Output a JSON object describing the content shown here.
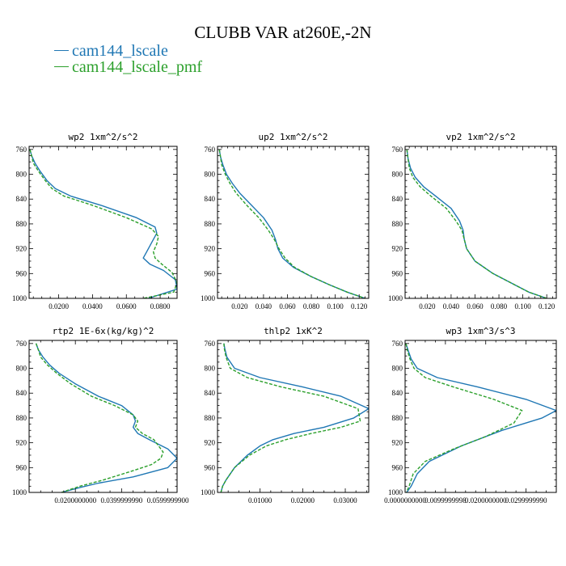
{
  "figure": {
    "title": "CLUBB VAR at260E,-2N",
    "legend": [
      {
        "label": "cam144_lscale",
        "color": "#1f77b4"
      },
      {
        "label": "cam144_lscale_pmf",
        "color": "#2ca02c"
      }
    ]
  },
  "chart_data": [
    {
      "type": "line",
      "title": "wp2  1xm^2/s^2",
      "xlim": [
        0.0025,
        0.09
      ],
      "ylim": [
        1000,
        755
      ],
      "y_reversed": true,
      "xticks": [
        "0.0200",
        "0.0400",
        "0.0600",
        "0.0800"
      ],
      "xtick_values": [
        0.02,
        0.04,
        0.06,
        0.08
      ],
      "yticks": [
        "760",
        "800",
        "840",
        "880",
        "920",
        "960",
        "1000"
      ],
      "series": [
        {
          "name": "cam144_lscale",
          "color": "#1f77b4",
          "dashed": false,
          "x": [
            0.003,
            0.004,
            0.006,
            0.009,
            0.013,
            0.018,
            0.027,
            0.045,
            0.066,
            0.077,
            0.078,
            0.075,
            0.072,
            0.07,
            0.074,
            0.082,
            0.089,
            0.09,
            0.073
          ],
          "y": [
            760,
            770,
            782,
            795,
            810,
            823,
            835,
            850,
            870,
            885,
            895,
            910,
            925,
            935,
            945,
            955,
            970,
            985,
            1000
          ]
        },
        {
          "name": "cam144_lscale_pmf",
          "color": "#2ca02c",
          "dashed": true,
          "x": [
            0.003,
            0.004,
            0.005,
            0.008,
            0.012,
            0.016,
            0.023,
            0.04,
            0.06,
            0.075,
            0.079,
            0.078,
            0.076,
            0.077,
            0.081,
            0.087,
            0.09,
            0.088,
            0.07
          ],
          "y": [
            760,
            770,
            782,
            795,
            810,
            823,
            835,
            850,
            870,
            888,
            900,
            912,
            925,
            935,
            945,
            958,
            975,
            990,
            1000
          ]
        }
      ]
    },
    {
      "type": "line",
      "title": "up2  1xm^2/s^2",
      "xlim": [
        0.0015,
        0.128
      ],
      "ylim": [
        1000,
        755
      ],
      "y_reversed": true,
      "xticks": [
        "0.020",
        "0.040",
        "0.060",
        "0.080",
        "0.100",
        "0.120"
      ],
      "xtick_values": [
        0.02,
        0.04,
        0.06,
        0.08,
        0.1,
        0.12
      ],
      "yticks": [
        "760",
        "800",
        "840",
        "880",
        "920",
        "960",
        "1000"
      ],
      "series": [
        {
          "name": "cam144_lscale",
          "color": "#1f77b4",
          "dashed": false,
          "x": [
            0.003,
            0.004,
            0.006,
            0.009,
            0.014,
            0.02,
            0.03,
            0.04,
            0.047,
            0.05,
            0.052,
            0.056,
            0.065,
            0.08,
            0.095,
            0.11,
            0.125
          ],
          "y": [
            760,
            772,
            785,
            800,
            815,
            830,
            850,
            870,
            890,
            905,
            920,
            935,
            950,
            965,
            978,
            990,
            1000
          ]
        },
        {
          "name": "cam144_lscale_pmf",
          "color": "#2ca02c",
          "dashed": true,
          "x": [
            0.003,
            0.004,
            0.005,
            0.008,
            0.012,
            0.017,
            0.026,
            0.036,
            0.044,
            0.049,
            0.053,
            0.058,
            0.066,
            0.08,
            0.095,
            0.11,
            0.125
          ],
          "y": [
            760,
            772,
            785,
            800,
            815,
            830,
            850,
            870,
            890,
            905,
            920,
            935,
            950,
            965,
            978,
            990,
            1000
          ]
        }
      ]
    },
    {
      "type": "line",
      "title": "vp2  1xm^2/s^2",
      "xlim": [
        0.0015,
        0.128
      ],
      "ylim": [
        1000,
        755
      ],
      "y_reversed": true,
      "xticks": [
        "0.020",
        "0.040",
        "0.060",
        "0.080",
        "0.100",
        "0.120"
      ],
      "xtick_values": [
        0.02,
        0.04,
        0.06,
        0.08,
        0.1,
        0.12
      ],
      "yticks": [
        "760",
        "800",
        "840",
        "880",
        "920",
        "960",
        "1000"
      ],
      "series": [
        {
          "name": "cam144_lscale",
          "color": "#1f77b4",
          "dashed": false,
          "x": [
            0.003,
            0.004,
            0.006,
            0.01,
            0.017,
            0.027,
            0.04,
            0.047,
            0.05,
            0.051,
            0.053,
            0.06,
            0.075,
            0.09,
            0.105,
            0.12
          ],
          "y": [
            760,
            775,
            790,
            805,
            820,
            835,
            855,
            875,
            890,
            905,
            920,
            940,
            960,
            975,
            990,
            1000
          ]
        },
        {
          "name": "cam144_lscale_pmf",
          "color": "#2ca02c",
          "dashed": true,
          "x": [
            0.003,
            0.004,
            0.005,
            0.008,
            0.014,
            0.023,
            0.036,
            0.044,
            0.049,
            0.051,
            0.053,
            0.06,
            0.075,
            0.09,
            0.105,
            0.12
          ],
          "y": [
            760,
            775,
            790,
            805,
            820,
            835,
            855,
            875,
            890,
            905,
            920,
            940,
            960,
            975,
            990,
            1000
          ]
        }
      ]
    },
    {
      "type": "line",
      "title": "rtp2  1E-6x(kg/kg)^2",
      "xlim": [
        0.0,
        0.064
      ],
      "ylim": [
        1000,
        755
      ],
      "y_reversed": true,
      "xticks": [
        "0.0200000000",
        "0.0399999990",
        "0.0599999900"
      ],
      "xtick_values": [
        0.02,
        0.04,
        0.06
      ],
      "yticks": [
        "760",
        "800",
        "840",
        "880",
        "920",
        "960",
        "1000"
      ],
      "series": [
        {
          "name": "cam144_lscale",
          "color": "#1f77b4",
          "dashed": false,
          "x": [
            0.003,
            0.004,
            0.006,
            0.009,
            0.013,
            0.02,
            0.03,
            0.04,
            0.045,
            0.046,
            0.045,
            0.047,
            0.052,
            0.06,
            0.064,
            0.06,
            0.045,
            0.03,
            0.022,
            0.014
          ],
          "y": [
            760,
            770,
            782,
            795,
            808,
            825,
            845,
            860,
            875,
            885,
            895,
            905,
            915,
            930,
            945,
            960,
            975,
            985,
            992,
            1000
          ]
        },
        {
          "name": "cam144_lscale_pmf",
          "color": "#2ca02c",
          "dashed": true,
          "x": [
            0.003,
            0.004,
            0.005,
            0.008,
            0.012,
            0.018,
            0.027,
            0.037,
            0.045,
            0.047,
            0.046,
            0.049,
            0.054,
            0.058,
            0.057,
            0.053,
            0.045,
            0.032,
            0.022,
            0.014
          ],
          "y": [
            760,
            770,
            782,
            795,
            808,
            825,
            845,
            860,
            875,
            885,
            895,
            905,
            915,
            935,
            945,
            955,
            965,
            980,
            990,
            1000
          ]
        }
      ]
    },
    {
      "type": "line",
      "title": "thlp2  1xK^2",
      "xlim": [
        0.0,
        0.0355
      ],
      "ylim": [
        1000,
        755
      ],
      "y_reversed": true,
      "xticks": [
        "0.01000",
        "0.02000",
        "0.03000"
      ],
      "xtick_values": [
        0.01,
        0.02,
        0.03
      ],
      "yticks": [
        "760",
        "800",
        "840",
        "880",
        "920",
        "960",
        "1000"
      ],
      "series": [
        {
          "name": "cam144_lscale",
          "color": "#1f77b4",
          "dashed": false,
          "x": [
            0.0015,
            0.0017,
            0.0022,
            0.004,
            0.01,
            0.02,
            0.029,
            0.0355,
            0.032,
            0.025,
            0.018,
            0.013,
            0.01,
            0.007,
            0.004,
            0.002,
            0.0012,
            0.0008
          ],
          "y": [
            760,
            768,
            782,
            800,
            815,
            830,
            845,
            865,
            880,
            895,
            905,
            915,
            925,
            940,
            960,
            980,
            990,
            1000
          ]
        },
        {
          "name": "cam144_lscale_pmf",
          "color": "#2ca02c",
          "dashed": true,
          "x": [
            0.0015,
            0.0016,
            0.002,
            0.003,
            0.007,
            0.015,
            0.025,
            0.033,
            0.0335,
            0.029,
            0.022,
            0.016,
            0.0115,
            0.0075,
            0.004,
            0.002,
            0.0012,
            0.0008
          ],
          "y": [
            760,
            768,
            782,
            800,
            815,
            830,
            845,
            865,
            885,
            895,
            905,
            915,
            925,
            940,
            960,
            980,
            990,
            1000
          ]
        }
      ]
    },
    {
      "type": "line",
      "title": "wp3  1xm^3/s^3",
      "xlim": [
        0.0,
        0.0375
      ],
      "ylim": [
        1000,
        755
      ],
      "y_reversed": true,
      "xticks": [
        "0.0000000000",
        "0.0099999998",
        "0.0200000000",
        "0.0299999990"
      ],
      "xtick_values": [
        0.0,
        0.01,
        0.02,
        0.03
      ],
      "yticks": [
        "760",
        "800",
        "840",
        "880",
        "920",
        "960",
        "1000"
      ],
      "series": [
        {
          "name": "cam144_lscale",
          "color": "#1f77b4",
          "dashed": false,
          "x": [
            0.0002,
            0.0008,
            0.0015,
            0.003,
            0.008,
            0.018,
            0.03,
            0.0375,
            0.034,
            0.024,
            0.014,
            0.006,
            0.003,
            0.0015,
            0.0004
          ],
          "y": [
            760,
            772,
            785,
            800,
            815,
            830,
            850,
            868,
            880,
            900,
            925,
            950,
            970,
            990,
            1000
          ]
        },
        {
          "name": "cam144_lscale_pmf",
          "color": "#2ca02c",
          "dashed": true,
          "x": [
            0.0002,
            0.0006,
            0.0012,
            0.0022,
            0.005,
            0.012,
            0.022,
            0.029,
            0.027,
            0.02,
            0.012,
            0.005,
            0.002,
            0.001,
            0.0003
          ],
          "y": [
            760,
            772,
            785,
            800,
            815,
            830,
            850,
            868,
            888,
            910,
            930,
            950,
            970,
            990,
            1000
          ]
        }
      ]
    }
  ]
}
